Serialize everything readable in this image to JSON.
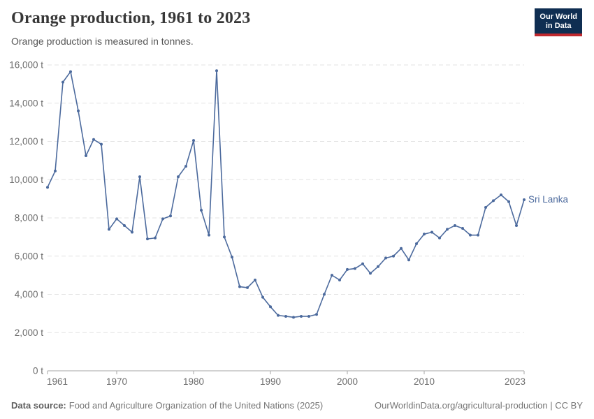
{
  "header": {
    "title": "Orange production, 1961 to 2023",
    "subtitle": "Orange production is measured in tonnes.",
    "logo": {
      "line1": "Our World",
      "line2": "in Data"
    }
  },
  "chart_data": {
    "type": "line",
    "title": "Orange production, 1961 to 2023",
    "ylabel": "",
    "xlabel": "",
    "unit": "tonnes",
    "grid": "horizontal-dashed",
    "legend_position": "end-of-line-label",
    "xlim": [
      1961,
      2023
    ],
    "ylim": [
      0,
      16000
    ],
    "x_ticks": [
      1961,
      1970,
      1980,
      1990,
      2000,
      2010,
      2023
    ],
    "y_ticks": [
      0,
      2000,
      4000,
      6000,
      8000,
      10000,
      12000,
      14000,
      16000
    ],
    "y_tick_labels": [
      "0 t",
      "2,000 t",
      "4,000 t",
      "6,000 t",
      "8,000 t",
      "10,000 t",
      "12,000 t",
      "14,000 t",
      "16,000 t"
    ],
    "entity_label": "Sri Lanka",
    "series": [
      {
        "name": "Sri Lanka",
        "color": "#4C6A9D",
        "x": [
          1961,
          1962,
          1963,
          1964,
          1965,
          1966,
          1967,
          1968,
          1969,
          1970,
          1971,
          1972,
          1973,
          1974,
          1975,
          1976,
          1977,
          1978,
          1979,
          1980,
          1981,
          1982,
          1983,
          1984,
          1985,
          1986,
          1987,
          1988,
          1989,
          1990,
          1991,
          1992,
          1993,
          1994,
          1995,
          1996,
          1997,
          1998,
          1999,
          2000,
          2001,
          2002,
          2003,
          2004,
          2005,
          2006,
          2007,
          2008,
          2009,
          2010,
          2011,
          2012,
          2013,
          2014,
          2015,
          2016,
          2017,
          2018,
          2019,
          2020,
          2021,
          2022,
          2023
        ],
        "values": [
          9600,
          10450,
          15100,
          15650,
          13600,
          11250,
          12100,
          11850,
          7400,
          7950,
          7600,
          7250,
          10150,
          6900,
          6950,
          7950,
          8100,
          10150,
          10700,
          12050,
          8400,
          7100,
          15700,
          7000,
          5950,
          4400,
          4350,
          4750,
          3850,
          3350,
          2900,
          2850,
          2800,
          2850,
          2850,
          2950,
          4000,
          5000,
          4750,
          5300,
          5350,
          5600,
          5100,
          5450,
          5900,
          6000,
          6400,
          5800,
          6650,
          7150,
          7250,
          6950,
          7400,
          7600,
          7450,
          7100,
          7100,
          8550,
          8900,
          9200,
          8850,
          7600,
          8950
        ]
      }
    ]
  },
  "footer": {
    "source_label": "Data source:",
    "source_text": "Food and Agriculture Organization of the United Nations (2025)",
    "link": "OurWorldinData.org/agricultural-production",
    "separator": " | ",
    "license": "CC BY"
  },
  "colors": {
    "accent": "#4C6A9D",
    "logo_bg": "#0f2e52",
    "logo_red": "#c0282e",
    "gridline": "#e3e3e3",
    "axis": "#a5a5a5",
    "axis_text": "#6d6d6d"
  }
}
